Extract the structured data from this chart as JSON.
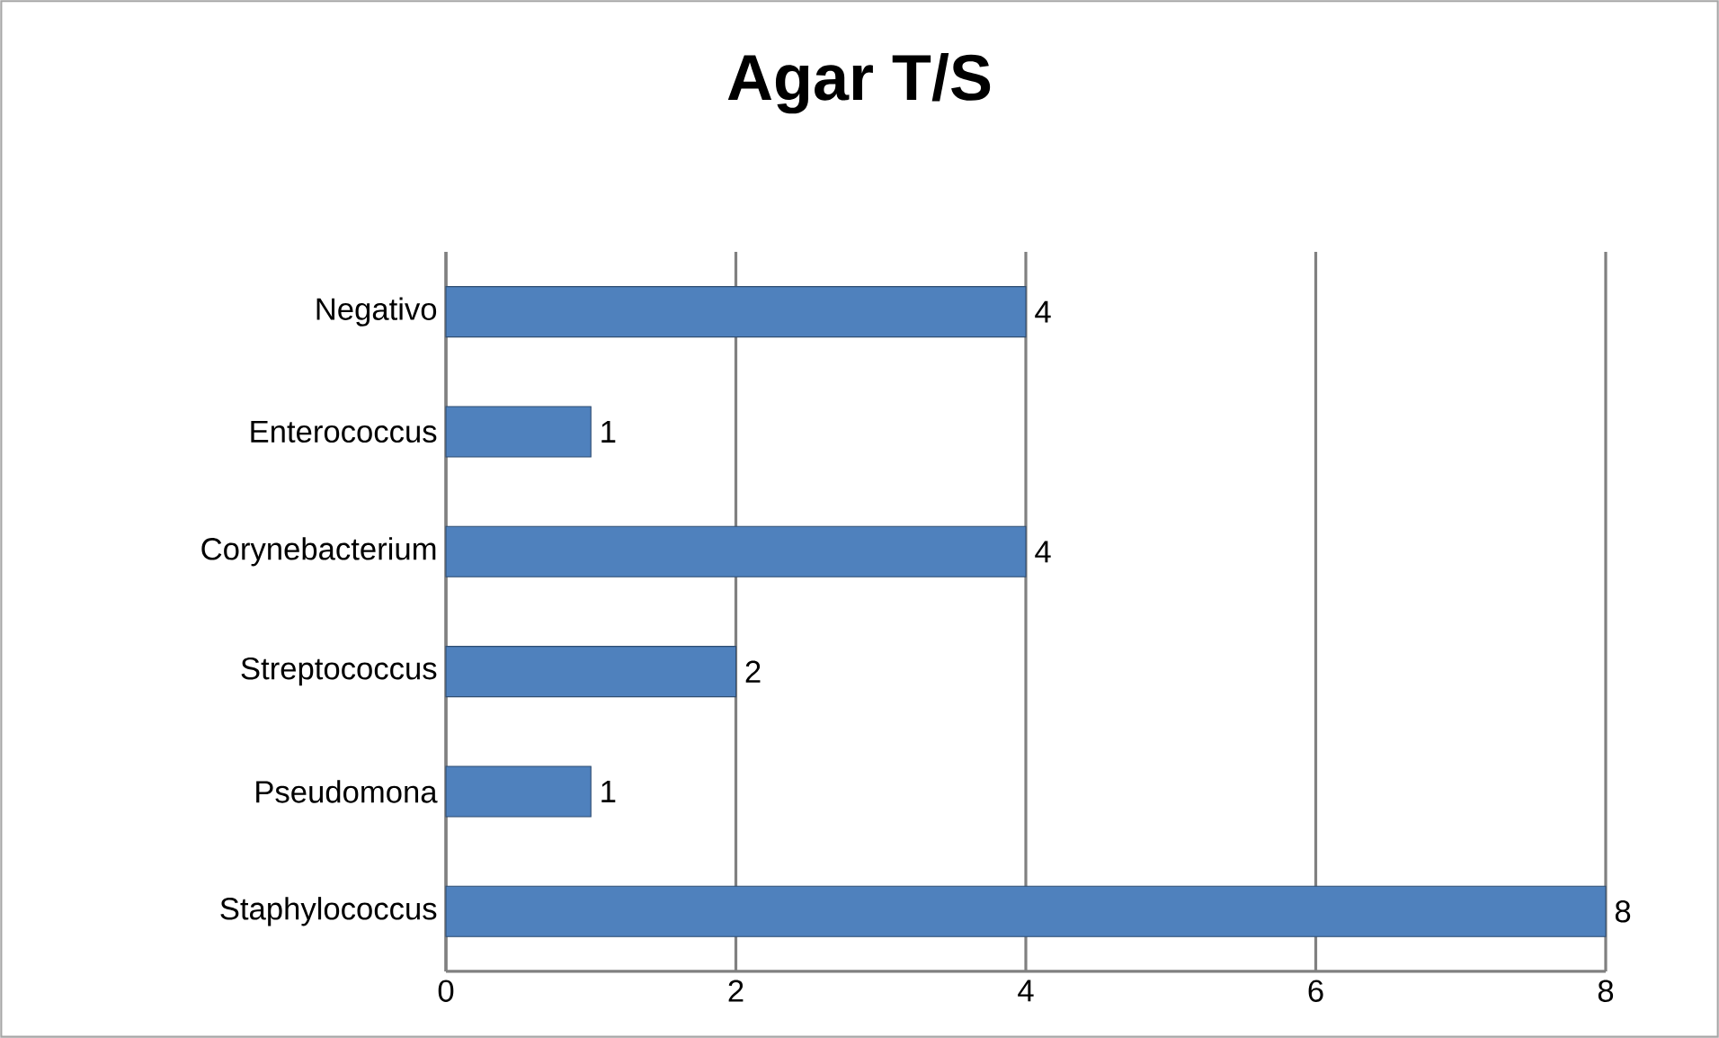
{
  "chart_data": {
    "type": "bar",
    "orientation": "horizontal",
    "title": "Agar T/S",
    "categories": [
      "Negativo",
      "Enterococcus",
      "Corynebacterium",
      "Streptococcus",
      "Pseudomona",
      "Staphylococcus"
    ],
    "values": [
      4,
      1,
      4,
      2,
      1,
      8
    ],
    "color": "#4f81bd",
    "xlim": [
      0,
      8
    ],
    "xticks": [
      0,
      2,
      4,
      6,
      8
    ],
    "grid": "x",
    "data_labels": true
  }
}
